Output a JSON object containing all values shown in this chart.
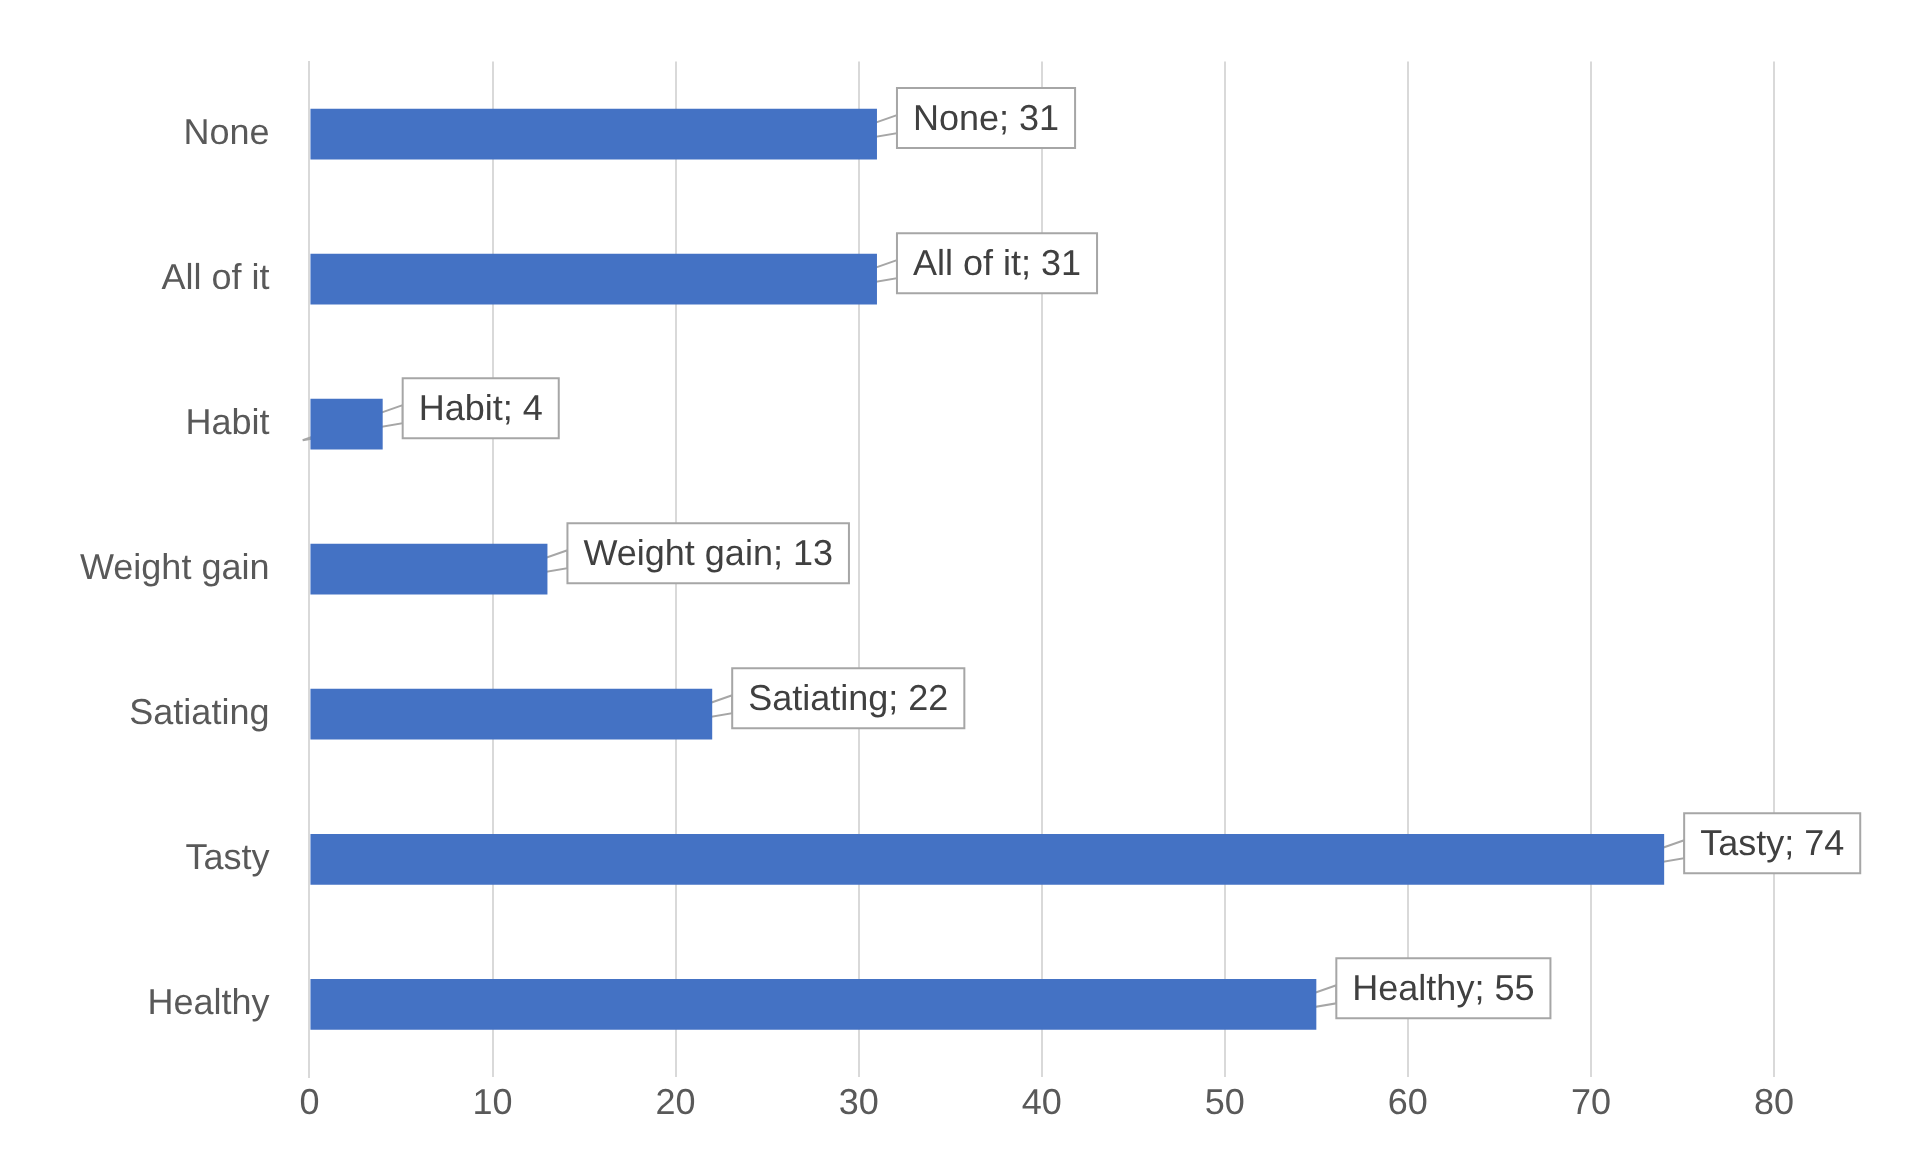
{
  "chart_data": {
    "type": "bar",
    "orientation": "horizontal",
    "categories": [
      "None",
      "All of it",
      "Habit",
      "Weight gain",
      "Satiating",
      "Tasty",
      "Healthy"
    ],
    "values": [
      31,
      31,
      4,
      13,
      22,
      74,
      55
    ],
    "value_labels": [
      "None; 31",
      "All of it; 31",
      "Habit; 4",
      "Weight gain; 13",
      "Satiating; 22",
      "Tasty; 74",
      "Healthy; 55"
    ],
    "color": "#4472c4",
    "xlim": [
      0,
      80
    ],
    "xticks": [
      0,
      10,
      20,
      30,
      40,
      50,
      60,
      70,
      80
    ],
    "grid": "x",
    "legend": false
  }
}
